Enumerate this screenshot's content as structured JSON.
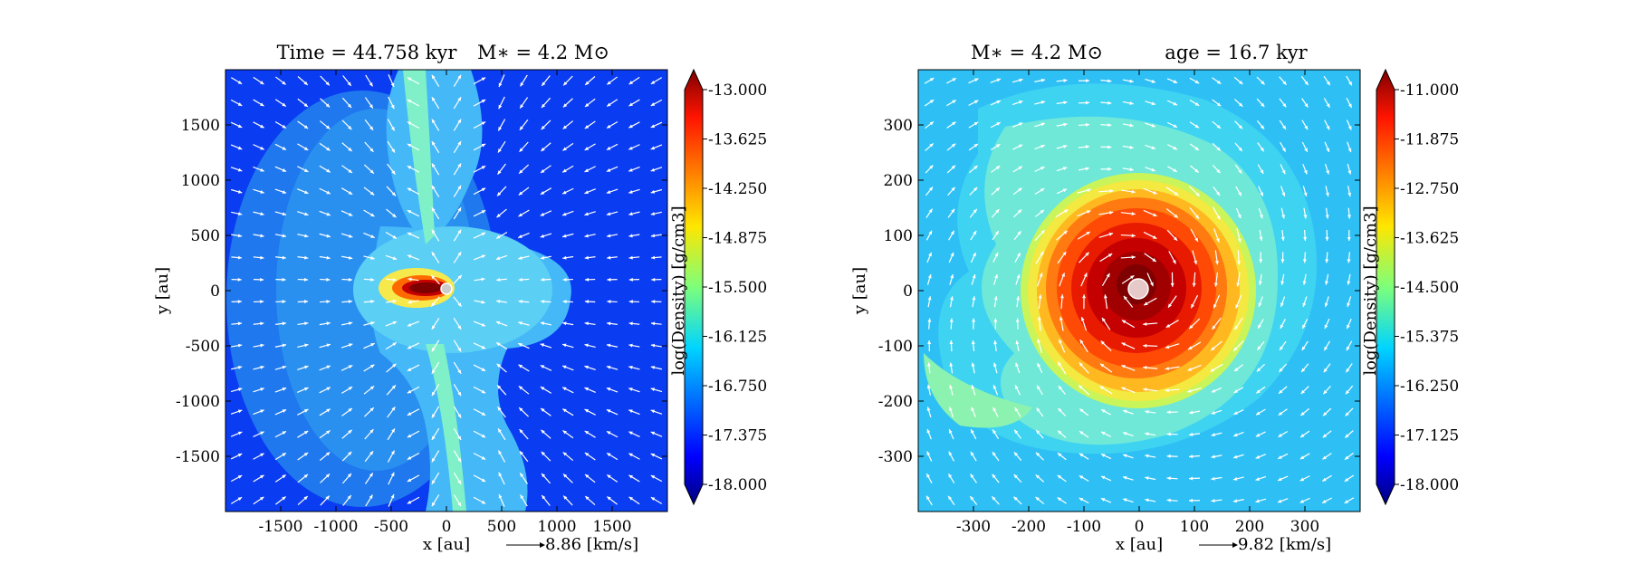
{
  "chart_data": [
    {
      "type": "heatmap",
      "title_left": "Time = 44.758 kyr",
      "title_right": "M∗ = 4.2 M⊙",
      "xlabel": "x [au]",
      "ylabel": "y [au]",
      "xlim": [
        -2000,
        2000
      ],
      "ylim": [
        -2000,
        2000
      ],
      "xticks": [
        -1500,
        -1000,
        -500,
        0,
        500,
        1000,
        1500
      ],
      "yticks": [
        -1500,
        -1000,
        -500,
        0,
        500,
        1000,
        1500
      ],
      "xtick_labels": [
        "-1500",
        "-1000",
        "-500",
        "0",
        "500",
        "1000",
        "1500"
      ],
      "ytick_labels": [
        "-1500",
        "-1000",
        "-500",
        "0",
        "500",
        "1000",
        "1500"
      ],
      "vector_key": "8.86 [km/s]",
      "colorbar": {
        "label": "log(Density) [g/cm3]",
        "range": [
          -18.0,
          -13.0
        ],
        "ticks": [
          "-13.000",
          "-13.625",
          "-14.250",
          "-14.875",
          "-15.500",
          "-16.125",
          "-16.750",
          "-17.375",
          "-18.000"
        ]
      },
      "colormap": "jet",
      "field": "bipolar outflow with edge-on disk",
      "sink_radius": 20
    },
    {
      "type": "heatmap",
      "title_left": "M∗ = 4.2 M⊙",
      "title_right": "age = 16.7 kyr",
      "xlabel": "x [au]",
      "ylabel": "y [au]",
      "xlim": [
        -400,
        400
      ],
      "ylim": [
        -400,
        400
      ],
      "xticks": [
        -300,
        -200,
        -100,
        0,
        100,
        200,
        300
      ],
      "yticks": [
        -300,
        -200,
        -100,
        0,
        100,
        200,
        300
      ],
      "xtick_labels": [
        "-300",
        "-200",
        "-100",
        "0",
        "100",
        "200",
        "300"
      ],
      "ytick_labels": [
        "-300",
        "-200",
        "-100",
        "0",
        "100",
        "200",
        "300"
      ],
      "vector_key": "9.82 [km/s]",
      "colorbar": {
        "label": "log(Density) [g/cm3]",
        "range": [
          -18.0,
          -11.0
        ],
        "ticks": [
          "-11.000",
          "-11.875",
          "-12.750",
          "-13.625",
          "-14.500",
          "-15.375",
          "-16.250",
          "-17.125",
          "-18.000"
        ]
      },
      "colormap": "jet",
      "field": "face-on rotating disk with spiral arms",
      "sink_radius": 18
    }
  ]
}
